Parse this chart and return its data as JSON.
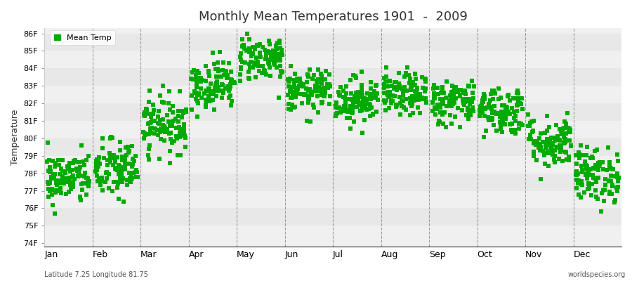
{
  "title": "Monthly Mean Temperatures 1901  -  2009",
  "ylabel": "Temperature",
  "xlabel_labels": [
    "Jan",
    "Feb",
    "Mar",
    "Apr",
    "May",
    "Jun",
    "Jul",
    "Aug",
    "Sep",
    "Oct",
    "Nov",
    "Dec"
  ],
  "ytick_labels": [
    "74F",
    "75F",
    "76F",
    "77F",
    "78F",
    "79F",
    "80F",
    "81F",
    "82F",
    "83F",
    "84F",
    "85F",
    "86F"
  ],
  "ytick_values": [
    74,
    75,
    76,
    77,
    78,
    79,
    80,
    81,
    82,
    83,
    84,
    85,
    86
  ],
  "ylim": [
    73.8,
    86.3
  ],
  "marker_color": "#00aa00",
  "marker": "s",
  "marker_size": 4,
  "legend_label": "Mean Temp",
  "bg_color": "#ffffff",
  "plot_bg_color": "#f0f0f0",
  "footer_left": "Latitude 7.25 Longitude 81.75",
  "footer_right": "worldspecies.org",
  "years": 109,
  "monthly_means": [
    77.7,
    78.2,
    80.8,
    83.1,
    84.6,
    82.7,
    82.2,
    82.5,
    82.1,
    81.6,
    79.8,
    77.9
  ],
  "monthly_stds": [
    0.75,
    0.85,
    0.8,
    0.7,
    0.65,
    0.6,
    0.65,
    0.6,
    0.65,
    0.7,
    0.75,
    0.8
  ],
  "stripe_colors": [
    "#f0f0f0",
    "#e8e8e8"
  ],
  "seed": 42
}
